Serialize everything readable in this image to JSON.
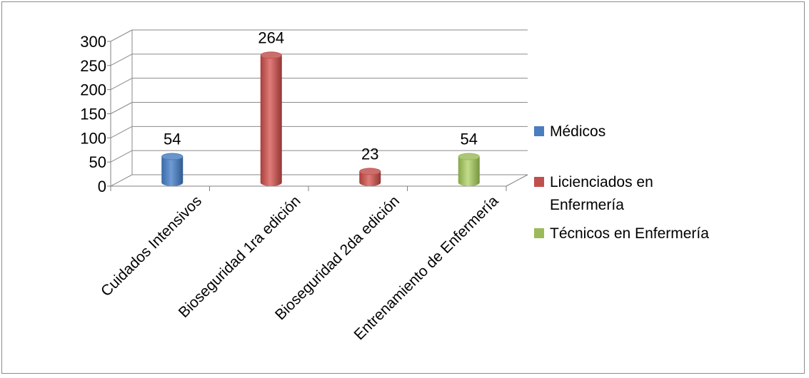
{
  "chart_data": {
    "type": "bar",
    "title": "",
    "xlabel": "",
    "ylabel": "",
    "categories": [
      "Cuidados Intensivos",
      "Bioseguridad  1ra edición",
      "Bioseguridad  2da edición",
      "Entrenamiento de Enfermería"
    ],
    "series": [
      {
        "name": "Médicos",
        "color": "#4a7ebf",
        "values": [
          54,
          null,
          null,
          null
        ]
      },
      {
        "name": "Licienciados en Enfermería",
        "color": "#c0504d",
        "values": [
          null,
          264,
          23,
          null
        ]
      },
      {
        "name": "Técnicos en Enfermería",
        "color": "#9bbb59",
        "values": [
          null,
          null,
          null,
          54
        ]
      }
    ],
    "data_labels": [
      "54",
      "264",
      "23",
      "54"
    ],
    "ylim": [
      0,
      300
    ],
    "yticks": [
      "0",
      "50",
      "100",
      "150",
      "200",
      "250",
      "300"
    ],
    "grid": true,
    "three_d": true,
    "legend_position": "right"
  }
}
